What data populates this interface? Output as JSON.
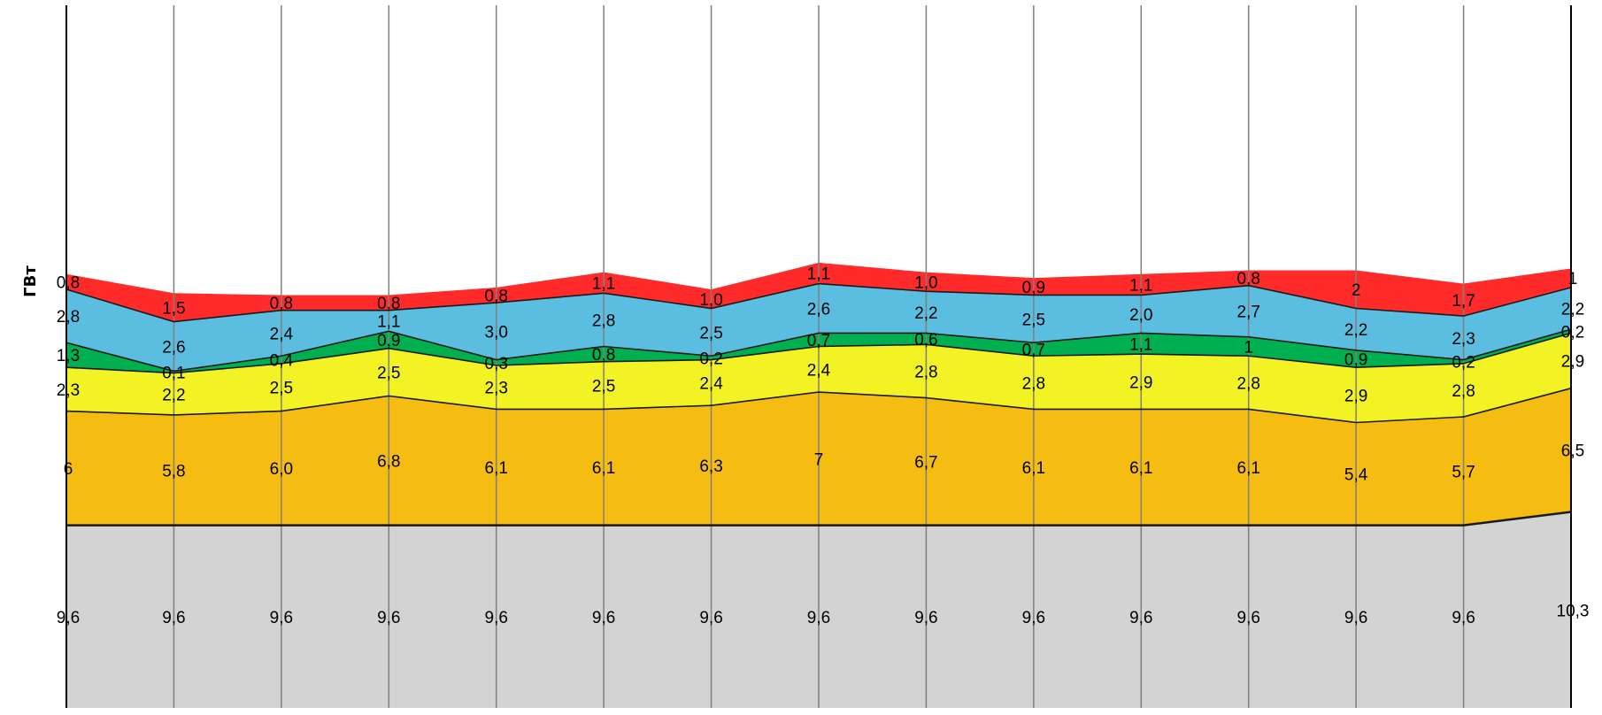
{
  "chart_data": {
    "type": "area",
    "stacked": true,
    "ylabel": "ГВт",
    "x_count": 15,
    "grid": "vertical",
    "legend": "none",
    "series": [
      {
        "color": "#d3d3d3",
        "values": [
          9.6,
          9.6,
          9.6,
          9.6,
          9.6,
          9.6,
          9.6,
          9.6,
          9.6,
          9.6,
          9.6,
          9.6,
          9.6,
          9.6,
          10.3
        ],
        "labels": [
          "9,6",
          "9,6",
          "9,6",
          "9,6",
          "9,6",
          "9,6",
          "9,6",
          "9,6",
          "9,6",
          "9,6",
          "9,6",
          "9,6",
          "9,6",
          "9,6",
          "10,3"
        ]
      },
      {
        "color": "#f5bc12",
        "values": [
          6,
          5.8,
          6.0,
          6.8,
          6.1,
          6.1,
          6.3,
          7,
          6.7,
          6.1,
          6.1,
          6.1,
          5.4,
          5.7,
          6.5
        ],
        "labels": [
          "6",
          "5,8",
          "6,0",
          "6,8",
          "6,1",
          "6,1",
          "6,3",
          "7",
          "6,7",
          "6,1",
          "6,1",
          "6,1",
          "5,4",
          "5,7",
          "6,5"
        ]
      },
      {
        "color": "#f2f224",
        "values": [
          2.3,
          2.2,
          2.5,
          2.5,
          2.3,
          2.5,
          2.4,
          2.4,
          2.8,
          2.8,
          2.9,
          2.8,
          2.9,
          2.8,
          2.9
        ],
        "labels": [
          "2,3",
          "2,2",
          "2,5",
          "2,5",
          "2,3",
          "2,5",
          "2,4",
          "2,4",
          "2,8",
          "2,8",
          "2,9",
          "2,8",
          "2,9",
          "2,8",
          "2,9"
        ]
      },
      {
        "color": "#00b050",
        "values": [
          1.3,
          0.1,
          0.4,
          0.9,
          0.3,
          0.8,
          0.2,
          0.7,
          0.6,
          0.7,
          1.1,
          1,
          0.9,
          0.2,
          0.2
        ],
        "labels": [
          "1,3",
          "0,1",
          "0,4",
          "0,9",
          "0,3",
          "0,8",
          "0,2",
          "0,7",
          "0,6",
          "0,7",
          "1,1",
          "1",
          "0,9",
          "0,2",
          "0,2"
        ]
      },
      {
        "color": "#5bbde0",
        "values": [
          2.8,
          2.6,
          2.4,
          1.1,
          3.0,
          2.8,
          2.5,
          2.6,
          2.2,
          2.5,
          2.0,
          2.7,
          2.2,
          2.3,
          2.2
        ],
        "labels": [
          "2,8",
          "2,6",
          "2,4",
          "1,1",
          "3,0",
          "2,8",
          "2,5",
          "2,6",
          "2,2",
          "2,5",
          "2,0",
          "2,7",
          "2,2",
          "2,3",
          "2,2"
        ]
      },
      {
        "color": "#ff2a2a",
        "values": [
          0.8,
          1.5,
          0.8,
          0.8,
          0.8,
          1.1,
          1.0,
          1.1,
          1.0,
          0.9,
          1.1,
          0.8,
          2,
          1.7,
          1
        ],
        "labels": [
          "0,8",
          "1,5",
          "0,8",
          "0,8",
          "0,8",
          "1,1",
          "1,0",
          "1,1",
          "1,0",
          "0,9",
          "1,1",
          "0,8",
          "2",
          "1,7",
          "1"
        ]
      }
    ]
  }
}
